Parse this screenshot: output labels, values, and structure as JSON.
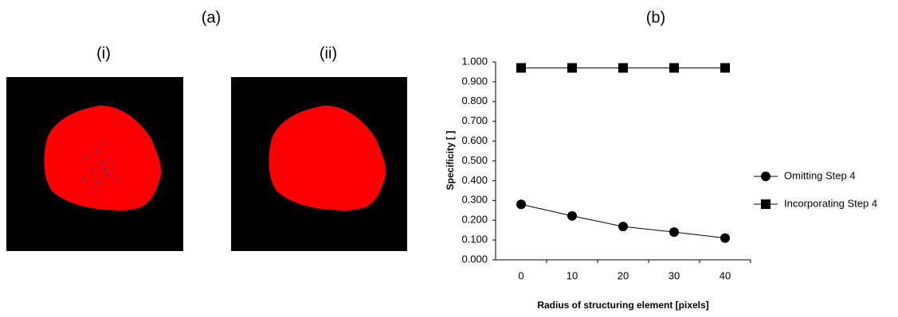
{
  "panel_a": "(a)",
  "panel_i": "(i)",
  "panel_ii": "(ii)",
  "panel_b": "(b)",
  "chart_data": {
    "type": "line",
    "x_label": "Radius of structuring element [pixels]",
    "y_label": "Specificity [ ]",
    "categories": [
      "0",
      "10",
      "20",
      "30",
      "40"
    ],
    "series": [
      {
        "name": "Omitting Step 4",
        "color": "#000000",
        "marker": "circle",
        "values": [
          0.28,
          0.222,
          0.168,
          0.14,
          0.11
        ]
      },
      {
        "name": "Incorporating Step 4",
        "color": "#000000",
        "marker": "square",
        "values": [
          0.97,
          0.97,
          0.97,
          0.97,
          0.97
        ]
      }
    ],
    "ylim": [
      0,
      1
    ],
    "yticks": [
      {
        "value": 0,
        "label": "0.000"
      },
      {
        "value": 0.1,
        "label": "0.100"
      },
      {
        "value": 0.2,
        "label": "0.200"
      },
      {
        "value": 0.3,
        "label": "0.300"
      },
      {
        "value": 0.4,
        "label": "0.400"
      },
      {
        "value": 0.5,
        "label": "0.500"
      },
      {
        "value": 0.6,
        "label": "0.600"
      },
      {
        "value": 0.7,
        "label": "0.700"
      },
      {
        "value": 0.8,
        "label": "0.800"
      },
      {
        "value": 0.9,
        "label": "0.900"
      },
      {
        "value": 1,
        "label": "1.000"
      }
    ],
    "legend": "right"
  }
}
